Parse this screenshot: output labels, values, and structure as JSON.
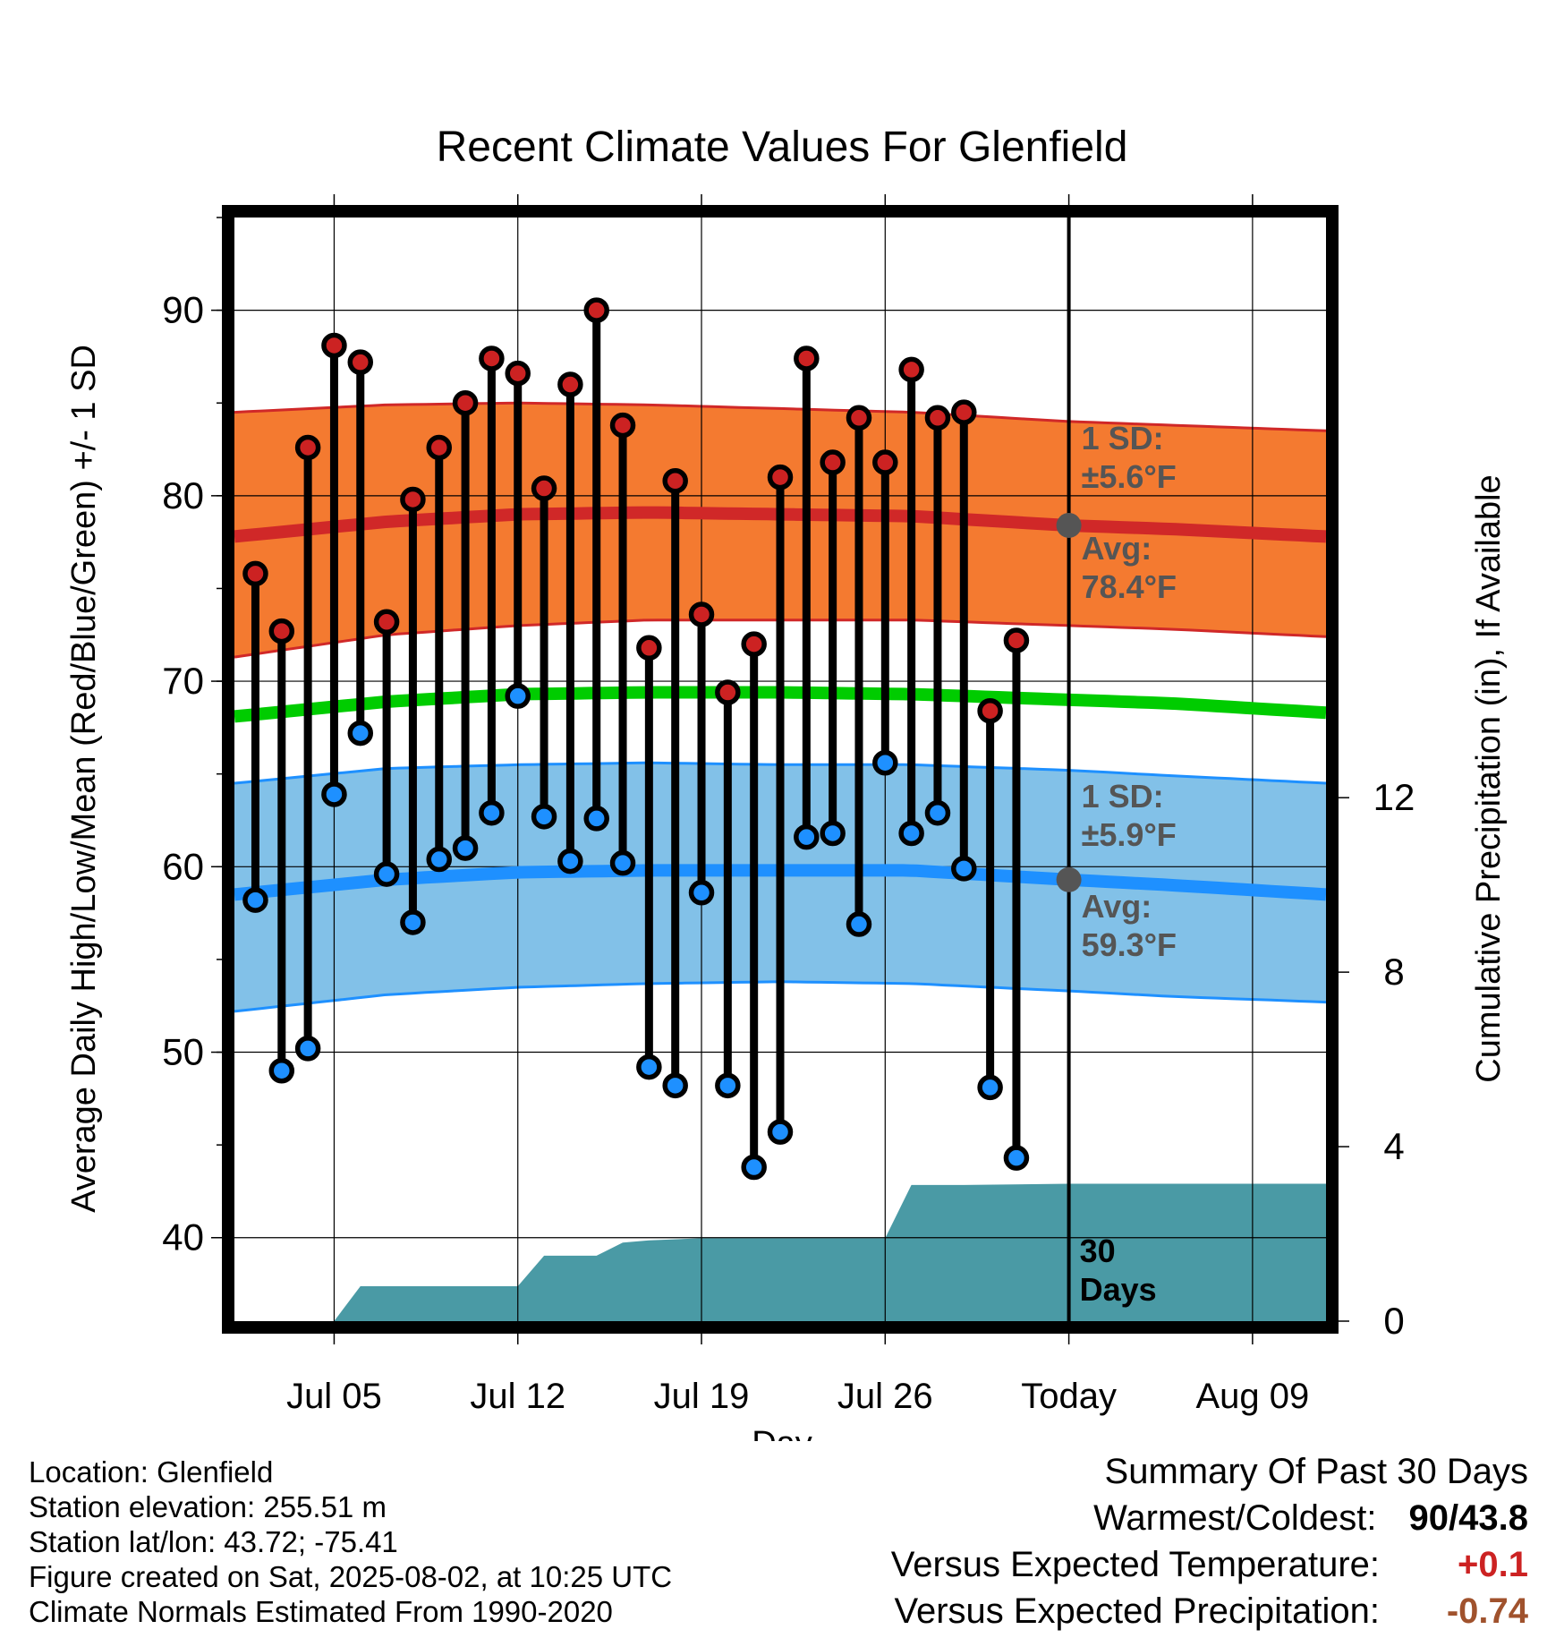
{
  "chart_data": {
    "type": "line",
    "title": "Recent Climate Values For Glenfield",
    "xlabel": "Day",
    "ylabel": "Average Daily High/Low/Mean (Red/Blue/Green) +/- 1 SD",
    "y2label": "Cumulative Precipitation (in), If Available",
    "ylim": [
      35.5,
      95
    ],
    "y2lim": [
      0,
      25.3
    ],
    "xlim": [
      -0.8,
      40.8
    ],
    "x_axis_origin": "Jul 02 = day 0",
    "x_ticks": [
      {
        "day": 3,
        "label": "Jul 05"
      },
      {
        "day": 10,
        "label": "Jul 12"
      },
      {
        "day": 17,
        "label": "Jul 19"
      },
      {
        "day": 24,
        "label": "Jul 26"
      },
      {
        "day": 31,
        "label": "Today"
      },
      {
        "day": 38,
        "label": "Aug 09"
      }
    ],
    "y_ticks": [
      40,
      50,
      60,
      70,
      80,
      90
    ],
    "y2_ticks": [
      0,
      4,
      8,
      12
    ],
    "grid": true,
    "days": [
      0,
      1,
      2,
      3,
      4,
      5,
      6,
      7,
      8,
      9,
      10,
      11,
      12,
      13,
      14,
      15,
      16,
      17,
      18,
      19,
      20,
      21,
      22,
      23,
      24,
      25,
      26,
      27,
      28,
      29
    ],
    "series": [
      {
        "name": "High",
        "color": "#cc2222",
        "values": [
          75.8,
          72.7,
          82.6,
          88.1,
          87.2,
          73.2,
          79.8,
          82.6,
          85.0,
          87.4,
          86.6,
          80.4,
          86.0,
          90.0,
          83.8,
          71.8,
          80.8,
          73.6,
          69.4,
          72.0,
          81.0,
          87.4,
          81.8,
          84.2,
          81.8,
          86.8,
          84.2,
          84.5,
          68.4,
          72.2
        ]
      },
      {
        "name": "Low",
        "color": "#1e90ff",
        "values": [
          58.2,
          49.0,
          50.2,
          63.9,
          67.2,
          59.6,
          57.0,
          60.4,
          61.0,
          62.9,
          69.2,
          62.7,
          60.3,
          62.6,
          60.2,
          49.2,
          48.2,
          58.6,
          48.2,
          43.8,
          45.7,
          61.6,
          61.8,
          56.9,
          65.6,
          61.8,
          62.9,
          59.9,
          48.1,
          44.3
        ]
      }
    ],
    "normal_high": {
      "color": "#d02828",
      "band_color": "#f47a30",
      "x": [
        -0.8,
        5,
        10,
        15,
        20,
        25,
        31,
        35,
        40.8
      ],
      "mean": [
        77.8,
        78.6,
        79.0,
        79.1,
        79.0,
        78.9,
        78.4,
        78.2,
        77.8
      ],
      "sd_upper": [
        84.5,
        84.9,
        85.0,
        84.9,
        84.7,
        84.5,
        84.0,
        83.8,
        83.5
      ],
      "sd_lower": [
        71.3,
        72.5,
        73.0,
        73.3,
        73.3,
        73.3,
        73.0,
        72.8,
        72.4
      ]
    },
    "normal_mean": {
      "color": "#00cc00",
      "x": [
        -0.8,
        5,
        10,
        15,
        20,
        25,
        31,
        35,
        40.8
      ],
      "values": [
        68.1,
        68.9,
        69.3,
        69.4,
        69.4,
        69.3,
        69.0,
        68.8,
        68.3
      ]
    },
    "normal_low": {
      "color": "#1e90ff",
      "band_color": "#82c1e8",
      "x": [
        -0.8,
        5,
        10,
        15,
        20,
        25,
        31,
        35,
        40.8
      ],
      "mean": [
        58.5,
        59.3,
        59.7,
        59.8,
        59.8,
        59.8,
        59.3,
        59.0,
        58.5
      ],
      "sd_upper": [
        64.5,
        65.3,
        65.5,
        65.6,
        65.5,
        65.5,
        65.2,
        64.9,
        64.5
      ],
      "sd_lower": [
        52.2,
        53.1,
        53.5,
        53.7,
        53.8,
        53.7,
        53.3,
        53.0,
        52.7
      ]
    },
    "precipitation": {
      "color": "#4a9aa5",
      "x": [
        3,
        4,
        10,
        11,
        13,
        14,
        15,
        17,
        24,
        25,
        27,
        31,
        40.8
      ],
      "values": [
        0,
        0.8,
        0.8,
        1.5,
        1.5,
        1.8,
        1.85,
        1.9,
        1.9,
        3.12,
        3.12,
        3.15,
        3.15
      ]
    },
    "annotations": {
      "high_sd": [
        "1 SD:",
        "±5.6°F"
      ],
      "high_avg": [
        "Avg:",
        "78.4°F"
      ],
      "low_sd": [
        "1 SD:",
        "±5.9°F"
      ],
      "low_avg": [
        "Avg:",
        "59.3°F"
      ],
      "window": [
        "30",
        "Days"
      ],
      "today_high_avg": 78.4,
      "today_low_avg": 59.3
    }
  },
  "footer": {
    "location": "Location: Glenfield",
    "elevation": "Station elevation: 255.51 m",
    "latlon": "Station lat/lon: 43.72; -75.41",
    "created": "Figure created on Sat, 2025-08-02, at 10:25 UTC",
    "normals": "Climate Normals Estimated From 1990-2020"
  },
  "summary": {
    "title": "Summary Of Past 30 Days",
    "warmest_coldest_label": "Warmest/Coldest:",
    "warmest_coldest_value": "90/43.8",
    "temp_label": "Versus Expected Temperature:",
    "temp_value": "+0.1",
    "temp_color": "#cc2222",
    "precip_label": "Versus Expected Precipitation:",
    "precip_value": "-0.74",
    "precip_color": "#a0522d"
  }
}
